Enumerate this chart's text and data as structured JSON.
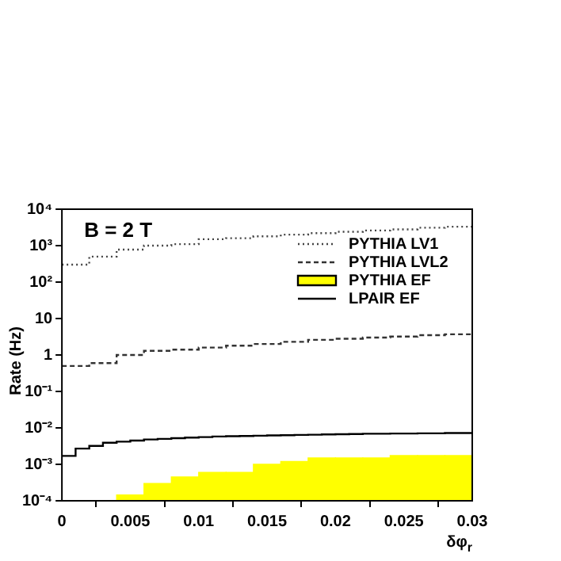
{
  "chart_data": {
    "type": "histogram",
    "xlabel": "δφ$_{r}$",
    "ylabel": "Rate (Hz)",
    "annotations": [
      "B = 2 T"
    ],
    "bins": [
      0,
      0.002,
      0.004,
      0.006,
      0.008,
      0.01,
      0.012,
      0.014,
      0.016,
      0.018,
      0.02,
      0.022,
      0.024,
      0.026,
      0.028,
      0.03
    ],
    "series": [
      {
        "name": "PYTHIA LV1",
        "type": "step",
        "color": "#444444",
        "line_style": "dotted",
        "x": [
          0,
          0.002,
          0.004,
          0.006,
          0.008,
          0.01,
          0.012,
          0.014,
          0.016,
          0.018,
          0.02,
          0.022,
          0.024,
          0.026,
          0.028,
          0.03
        ],
        "values": [
          300,
          500,
          780,
          1000,
          1100,
          1500,
          1600,
          1800,
          2000,
          2200,
          2400,
          2600,
          2800,
          3100,
          3300,
          3300
        ]
      },
      {
        "name": "PYTHIA LVL2",
        "type": "step",
        "color": "#333333",
        "line_style": "dashed",
        "x": [
          0,
          0.002,
          0.004,
          0.006,
          0.008,
          0.01,
          0.012,
          0.014,
          0.016,
          0.018,
          0.02,
          0.022,
          0.024,
          0.026,
          0.028,
          0.03
        ],
        "values": [
          0.5,
          0.6,
          1.0,
          1.3,
          1.4,
          1.6,
          1.8,
          2.0,
          2.3,
          2.6,
          2.8,
          3.0,
          3.2,
          3.5,
          3.7,
          3.7
        ]
      },
      {
        "name": "PYTHIA EF",
        "color": "#ffff00",
        "values": [
          null,
          null,
          0.000145,
          0.0003,
          0.00045,
          0.0006,
          0.0006,
          0.001,
          0.0012,
          0.0015,
          0.0015,
          0.0015,
          0.00175,
          0.00175,
          0.00175
        ]
      },
      {
        "name": "LPAIR EF",
        "type": "step",
        "color": "#000000",
        "line_style": "solid",
        "x": [
          0,
          0.001,
          0.002,
          0.003,
          0.004,
          0.005,
          0.006,
          0.007,
          0.008,
          0.009,
          0.01,
          0.011,
          0.012,
          0.013,
          0.014,
          0.015,
          0.016,
          0.017,
          0.018,
          0.019,
          0.02,
          0.021,
          0.022,
          0.023,
          0.024,
          0.025,
          0.026,
          0.027,
          0.028,
          0.029,
          0.03
        ],
        "values": [
          0.0017,
          0.0027,
          0.0032,
          0.0039,
          0.0042,
          0.0045,
          0.0048,
          0.005,
          0.0052,
          0.0054,
          0.0056,
          0.0058,
          0.0059,
          0.006,
          0.0061,
          0.0062,
          0.0063,
          0.0064,
          0.0065,
          0.0066,
          0.0067,
          0.0068,
          0.0069,
          0.0069,
          0.007,
          0.007,
          0.0071,
          0.0071,
          0.0072,
          0.0072,
          0.0072
        ]
      }
    ],
    "xlim": [
      0,
      0.03
    ],
    "xticks": [
      0,
      0.005,
      0.01,
      0.015,
      0.02,
      0.025,
      0.03
    ],
    "ylim": [
      0.0001,
      10000
    ],
    "yticks": [
      {
        "value": 0.0001,
        "label": "10⁻⁴"
      },
      {
        "value": 0.001,
        "label": "10⁻³"
      },
      {
        "value": 0.01,
        "label": "10⁻²"
      },
      {
        "value": 0.1,
        "label": "10⁻¹"
      },
      {
        "value": 1,
        "label": "1"
      },
      {
        "value": 10,
        "label": "10"
      },
      {
        "value": 100,
        "label": "10²"
      },
      {
        "value": 1000,
        "label": "10³"
      },
      {
        "value": 10000,
        "label": "10⁴"
      }
    ],
    "log": "y",
    "grid": false,
    "legend": "top right"
  }
}
